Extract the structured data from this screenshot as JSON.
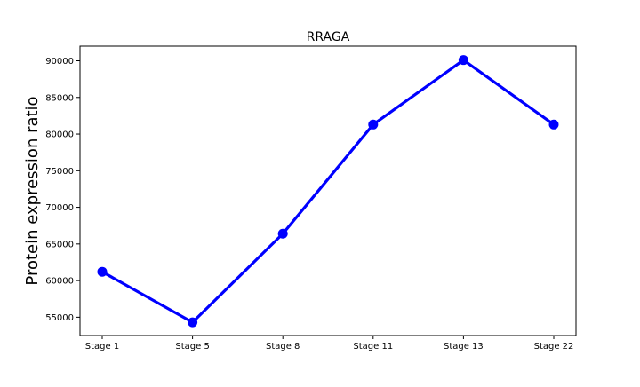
{
  "chart_data": {
    "type": "line",
    "title": "RRAGA",
    "xlabel": "",
    "ylabel": "Protein expression ratio",
    "categories": [
      "Stage 1",
      "Stage 5",
      "Stage 8",
      "Stage 11",
      "Stage 13",
      "Stage 22"
    ],
    "series": [
      {
        "values": [
          61200,
          54300,
          66400,
          81300,
          90100,
          81300
        ],
        "color": "#0000ff",
        "marker": "circle"
      }
    ],
    "ylim": [
      52500,
      92000
    ],
    "yticks": [
      55000,
      60000,
      65000,
      70000,
      75000,
      80000,
      85000,
      90000
    ],
    "ytick_labels": [
      "55000",
      "60000",
      "65000",
      "70000",
      "75000",
      "80000",
      "85000",
      "90000"
    ],
    "grid": false,
    "legend": "none"
  }
}
